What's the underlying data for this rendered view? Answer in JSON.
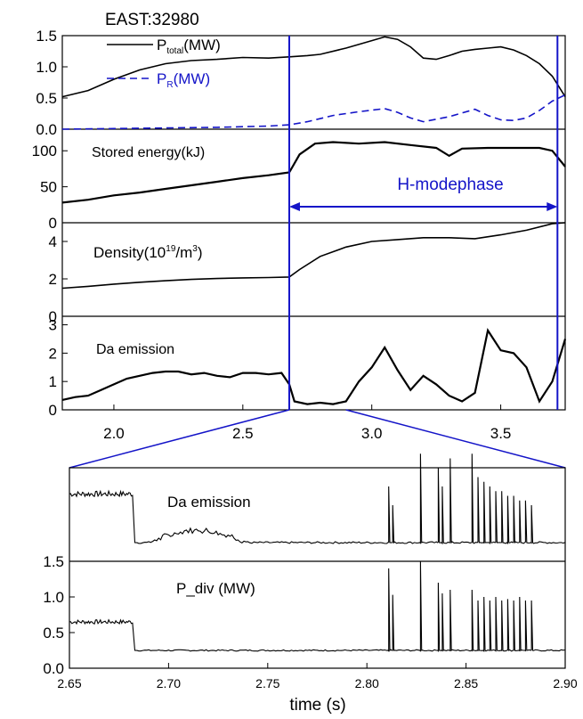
{
  "figure": {
    "title": "EAST:32980",
    "xlabel": "time (s)",
    "hmode_label": "H-modephase",
    "colors": {
      "black": "#000000",
      "blue": "#1414c8"
    }
  },
  "chart_data": [
    {
      "type": "line",
      "panel": "power",
      "x_range": [
        1.8,
        3.75
      ],
      "ylim": [
        0.0,
        1.5
      ],
      "yticks": [
        "0.0",
        "0.5",
        "1.0",
        "1.5"
      ],
      "series": [
        {
          "name": "P_total(MW)",
          "label_main": "P",
          "label_sub": "total",
          "label_unit": "(MW)",
          "color": "#000000",
          "dash": "solid",
          "x": [
            1.8,
            1.9,
            2.0,
            2.1,
            2.2,
            2.3,
            2.4,
            2.5,
            2.6,
            2.68,
            2.75,
            2.8,
            2.9,
            3.0,
            3.05,
            3.1,
            3.15,
            3.2,
            3.25,
            3.3,
            3.35,
            3.4,
            3.45,
            3.5,
            3.55,
            3.6,
            3.65,
            3.7,
            3.75
          ],
          "y": [
            0.52,
            0.62,
            0.8,
            0.95,
            1.05,
            1.1,
            1.12,
            1.15,
            1.14,
            1.16,
            1.18,
            1.2,
            1.3,
            1.42,
            1.48,
            1.44,
            1.32,
            1.14,
            1.12,
            1.18,
            1.25,
            1.28,
            1.3,
            1.32,
            1.27,
            1.18,
            1.05,
            0.85,
            0.52
          ]
        },
        {
          "name": "P_R(MW)",
          "label_main": "P",
          "label_sub": "R",
          "label_unit": "(MW)",
          "color": "#1414c8",
          "dash": "dashed",
          "x": [
            1.8,
            2.0,
            2.2,
            2.4,
            2.6,
            2.68,
            2.75,
            2.85,
            2.95,
            3.05,
            3.1,
            3.15,
            3.2,
            3.3,
            3.4,
            3.45,
            3.5,
            3.55,
            3.6,
            3.65,
            3.7,
            3.75
          ],
          "y": [
            0.0,
            0.01,
            0.02,
            0.03,
            0.05,
            0.07,
            0.12,
            0.22,
            0.28,
            0.33,
            0.27,
            0.18,
            0.12,
            0.2,
            0.32,
            0.22,
            0.15,
            0.14,
            0.18,
            0.3,
            0.45,
            0.55
          ]
        }
      ]
    },
    {
      "type": "line",
      "panel": "stored-energy",
      "label": "Stored energy(kJ)",
      "x_range": [
        1.8,
        3.75
      ],
      "ylim": [
        0,
        130
      ],
      "yticks": [
        "0",
        "50",
        "100"
      ],
      "series": [
        {
          "color": "#000000",
          "x": [
            1.8,
            1.9,
            2.0,
            2.1,
            2.2,
            2.3,
            2.4,
            2.5,
            2.6,
            2.68,
            2.72,
            2.78,
            2.85,
            2.95,
            3.05,
            3.15,
            3.25,
            3.3,
            3.35,
            3.45,
            3.55,
            3.65,
            3.7,
            3.75
          ],
          "y": [
            28,
            32,
            38,
            42,
            47,
            52,
            57,
            62,
            66,
            70,
            95,
            110,
            112,
            110,
            112,
            108,
            104,
            93,
            103,
            104,
            104,
            104,
            100,
            78
          ]
        }
      ]
    },
    {
      "type": "line",
      "panel": "density",
      "label_main": "Density(10",
      "label_exp": "19",
      "label_mid": "/m",
      "label_exp2": "3",
      "label_close": ")",
      "x_range": [
        1.8,
        3.75
      ],
      "ylim": [
        0,
        5
      ],
      "yticks": [
        "0",
        "2",
        "4"
      ],
      "series": [
        {
          "color": "#000000",
          "x": [
            1.8,
            1.9,
            2.0,
            2.1,
            2.2,
            2.3,
            2.4,
            2.5,
            2.6,
            2.68,
            2.72,
            2.8,
            2.9,
            3.0,
            3.1,
            3.2,
            3.3,
            3.4,
            3.5,
            3.6,
            3.7,
            3.75
          ],
          "y": [
            1.5,
            1.6,
            1.72,
            1.82,
            1.9,
            1.97,
            2.02,
            2.05,
            2.07,
            2.1,
            2.5,
            3.2,
            3.7,
            4.0,
            4.1,
            4.2,
            4.2,
            4.15,
            4.35,
            4.6,
            4.95,
            5.0
          ]
        }
      ]
    },
    {
      "type": "line",
      "panel": "da-emission",
      "label": "Da emission",
      "x_range": [
        1.8,
        3.75
      ],
      "ylim": [
        0,
        3.3
      ],
      "yticks": [
        "0",
        "1",
        "2",
        "3"
      ],
      "series": [
        {
          "color": "#000000",
          "x": [
            1.8,
            1.85,
            1.9,
            1.95,
            2.0,
            2.05,
            2.1,
            2.15,
            2.2,
            2.25,
            2.3,
            2.35,
            2.4,
            2.45,
            2.5,
            2.55,
            2.6,
            2.65,
            2.68,
            2.7,
            2.75,
            2.8,
            2.85,
            2.9,
            2.95,
            3.0,
            3.05,
            3.1,
            3.15,
            3.2,
            3.25,
            3.3,
            3.35,
            3.4,
            3.45,
            3.5,
            3.55,
            3.6,
            3.65,
            3.7,
            3.75
          ],
          "y": [
            0.35,
            0.45,
            0.5,
            0.7,
            0.9,
            1.1,
            1.2,
            1.3,
            1.35,
            1.35,
            1.25,
            1.3,
            1.2,
            1.15,
            1.3,
            1.3,
            1.25,
            1.3,
            0.9,
            0.3,
            0.2,
            0.25,
            0.2,
            0.3,
            1.0,
            1.5,
            2.2,
            1.4,
            0.7,
            1.2,
            0.9,
            0.5,
            0.3,
            0.6,
            2.8,
            2.1,
            2.0,
            1.5,
            0.3,
            1.0,
            2.5
          ]
        }
      ]
    },
    {
      "type": "line",
      "panel": "zoom-da-emission",
      "label": "Da emission",
      "x_range": [
        2.65,
        2.9
      ],
      "ylim": [
        0,
        1.0
      ],
      "yticks": [
        "1.5"
      ],
      "series": [
        {
          "color": "#000000",
          "baseline": {
            "pre": [
              2.65,
              2.682,
              0.72
            ],
            "post_level": 0.2
          },
          "hump": {
            "x_start": 2.69,
            "x_end": 2.74,
            "height": 0.22
          },
          "spikes": [
            2.811,
            2.813,
            2.827,
            2.836,
            2.838,
            2.842,
            2.853,
            2.856,
            2.859,
            2.862,
            2.865,
            2.868,
            2.871,
            2.874,
            2.877,
            2.88,
            2.883
          ],
          "spike_heights": [
            0.6,
            0.4,
            0.95,
            0.8,
            0.6,
            0.9,
            0.95,
            0.7,
            0.65,
            0.6,
            0.55,
            0.55,
            0.5,
            0.5,
            0.45,
            0.45,
            0.4
          ]
        }
      ]
    },
    {
      "type": "line",
      "panel": "zoom-p-div",
      "label": "P_div (MW)",
      "xlabel": "time (s)",
      "x_range": [
        2.65,
        2.9
      ],
      "ylim": [
        0.0,
        1.5
      ],
      "yticks": [
        "0.0",
        "0.5",
        "1.0",
        "1.5"
      ],
      "xticks": [
        "2.65",
        "2.70",
        "2.75",
        "2.80",
        "2.85",
        "2.90"
      ],
      "series": [
        {
          "color": "#000000",
          "baseline": {
            "pre": [
              2.65,
              2.682,
              0.65
            ],
            "post_level": 0.25
          },
          "spikes": [
            2.811,
            2.813,
            2.827,
            2.836,
            2.838,
            2.842,
            2.853,
            2.856,
            2.859,
            2.862,
            2.865,
            2.868,
            2.871,
            2.874,
            2.877,
            2.88,
            2.883
          ],
          "spike_heights": [
            1.15,
            0.78,
            1.25,
            0.95,
            0.8,
            0.85,
            0.85,
            0.7,
            0.75,
            0.7,
            0.75,
            0.7,
            0.72,
            0.7,
            0.75,
            0.7,
            0.7
          ]
        }
      ]
    }
  ],
  "top_xaxis": {
    "xticks": [
      "2.0",
      "2.5",
      "3.0",
      "3.5"
    ],
    "values": [
      2.0,
      2.5,
      3.0,
      3.5
    ]
  },
  "markers": {
    "hmode_start": 2.68,
    "hmode_end": 3.72
  }
}
